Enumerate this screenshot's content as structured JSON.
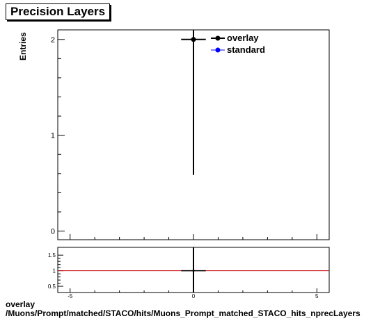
{
  "title": "Precision Layers",
  "footer": {
    "line1": "overlay",
    "line2": "/Muons/Prompt/matched/STACO/hits/Muons_Prompt_matched_STACO_hits_nprecLayers"
  },
  "colors": {
    "overlay": "#000000",
    "standard": "#0000ff",
    "ratio_line": "#cc0000"
  },
  "chart_data": [
    {
      "type": "scatter",
      "title": "Precision Layers",
      "ylabel": "Entries",
      "xlabel": "Precision Layers",
      "xlim": [
        -5.5,
        5.5
      ],
      "ylim": [
        -0.09,
        2.1
      ],
      "ytick_labels": [
        "0",
        "1",
        "2"
      ],
      "legend": {
        "position": "top-right",
        "entries": [
          "overlay",
          "standard"
        ]
      },
      "series": [
        {
          "name": "overlay",
          "x": [
            0
          ],
          "y": [
            2
          ],
          "xerr": [
            0.5
          ],
          "yerr": [
            1.414
          ],
          "color": "#000000"
        },
        {
          "name": "standard",
          "x": [],
          "y": [],
          "color": "#0000ff"
        }
      ]
    },
    {
      "type": "scatter",
      "xlim": [
        -5.5,
        5.5
      ],
      "ylim": [
        0.3,
        1.75
      ],
      "xtick_labels": [
        "-5",
        "0",
        "5"
      ],
      "ytick_labels": [
        "0.5",
        "1",
        "1.5"
      ],
      "reference_line": 1,
      "series": [
        {
          "x": [
            0
          ],
          "y": [
            1
          ],
          "xerr": [
            0.5
          ]
        }
      ]
    }
  ]
}
